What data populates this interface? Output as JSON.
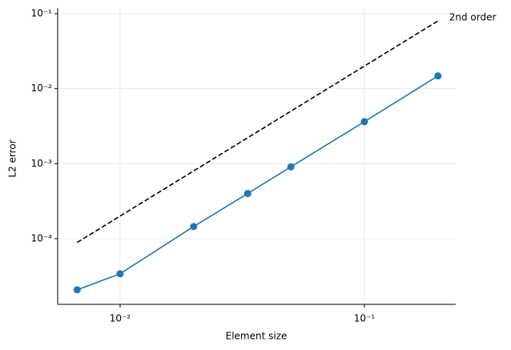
{
  "chart_data": {
    "type": "line",
    "x_label": "Element size",
    "y_label": "L2 error",
    "log_x": true,
    "log_y": true,
    "grid": true,
    "xlim": [
      0.00555,
      0.2366
    ],
    "ylim": [
      1.33e-05,
      0.119
    ],
    "xticks": [
      {
        "value": 0.01,
        "label": "10⁻²"
      },
      {
        "value": 0.1,
        "label": "10⁻¹"
      }
    ],
    "yticks": [
      {
        "value": 0.0001,
        "label": "10⁻⁴"
      },
      {
        "value": 0.001,
        "label": "10⁻³"
      },
      {
        "value": 0.01,
        "label": "10⁻²"
      },
      {
        "value": 0.1,
        "label": "10⁻¹"
      }
    ],
    "series": [
      {
        "color": "#1f77b4",
        "marker": true,
        "dashed": false,
        "x": [
          0.00667,
          0.01,
          0.02,
          0.0333,
          0.05,
          0.1,
          0.2
        ],
        "values": [
          2.08e-05,
          3.4e-05,
          0.000145,
          0.0004,
          0.000906,
          0.00363,
          0.0148
        ]
      },
      {
        "name": "2nd order",
        "color": "#000000",
        "marker": false,
        "dashed": true,
        "x": [
          0.00667,
          0.2
        ],
        "values": [
          8.9e-05,
          0.08
        ]
      }
    ]
  }
}
